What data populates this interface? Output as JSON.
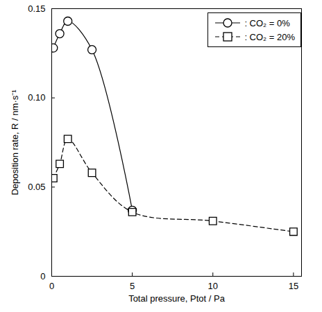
{
  "chart_data": {
    "type": "line",
    "x_label": "Total pressure, Ptot / Pa",
    "y_label": "Deposition rate, R / nm·s⁻¹",
    "xlim": [
      0,
      15.5
    ],
    "xticks": [
      0,
      5,
      10,
      15
    ],
    "ylim": [
      0,
      0.15
    ],
    "yticks": [
      0,
      0.05,
      {
        "value": 0.1,
        "label": "0.10"
      },
      0.15
    ],
    "legend": "top-right",
    "series": [
      {
        "name": ": CO₂ = 0%",
        "color": "#000000",
        "marker": "circle",
        "line_style": "solid",
        "x": [
          0.1,
          0.5,
          1,
          2.5,
          5
        ],
        "values": [
          0.128,
          0.136,
          0.143,
          0.127,
          0.037
        ]
      },
      {
        "name": ": CO₂ = 20%",
        "color": "#000000",
        "marker": "square",
        "line_style": "dashed",
        "x": [
          0.1,
          0.5,
          1,
          2.5,
          5,
          10,
          15
        ],
        "values": [
          0.055,
          0.063,
          0.077,
          0.058,
          0.036,
          0.031,
          0.025
        ]
      }
    ]
  }
}
